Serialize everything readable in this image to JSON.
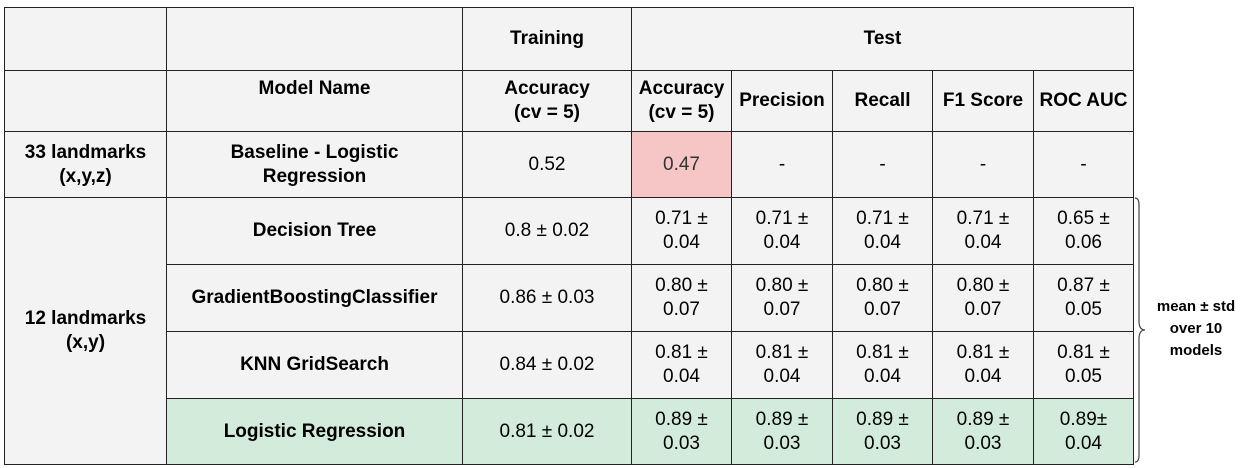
{
  "headers": {
    "training_group": "Training",
    "test_group": "Test",
    "model_name": "Model Name",
    "train_accuracy": "Accuracy (cv = 5)",
    "test_accuracy": "Accuracy (cv = 5)",
    "precision": "Precision",
    "recall": "Recall",
    "f1": "F1 Score",
    "roc_auc": "ROC AUC"
  },
  "groups": {
    "g33": "33 landmarks (x,y,z)",
    "g12": "12 landmarks (x,y)"
  },
  "rows": [
    {
      "model": "Baseline - Logistic Regression",
      "train_acc": "0.52",
      "test_acc": "0.47",
      "precision": "-",
      "recall": "-",
      "f1": "-",
      "roc_auc": "-"
    },
    {
      "model": "Decision Tree",
      "train_acc": "0.8 ± 0.02",
      "test_acc": "0.71 ± 0.04",
      "precision": "0.71 ± 0.04",
      "recall": "0.71 ± 0.04",
      "f1": "0.71 ± 0.04",
      "roc_auc": "0.65 ± 0.06"
    },
    {
      "model": "GradientBoostingClassifier",
      "train_acc": "0.86 ± 0.03",
      "test_acc": "0.80 ± 0.07",
      "precision": "0.80 ± 0.07",
      "recall": "0.80 ± 0.07",
      "f1": "0.80 ± 0.07",
      "roc_auc": "0.87 ± 0.05"
    },
    {
      "model": "KNN GridSearch",
      "train_acc": "0.84 ± 0.02",
      "test_acc": "0.81 ± 0.04",
      "precision": "0.81 ± 0.04",
      "recall": "0.81 ± 0.04",
      "f1": "0.81 ± 0.04",
      "roc_auc": "0.81 ± 0.05"
    },
    {
      "model": "Logistic Regression",
      "train_acc": "0.81 ± 0.02",
      "test_acc": "0.89 ± 0.03",
      "precision": "0.89 ± 0.03",
      "recall": "0.89 ± 0.03",
      "f1": "0.89 ± 0.03",
      "roc_auc": "0.89± 0.04"
    }
  ],
  "note": "mean ± std over 10 models",
  "colors": {
    "cell_bg": "#f3f3f3",
    "best_row_bg": "#d3ebdb",
    "baseline_test_acc_bg": "#f6c6c6"
  }
}
